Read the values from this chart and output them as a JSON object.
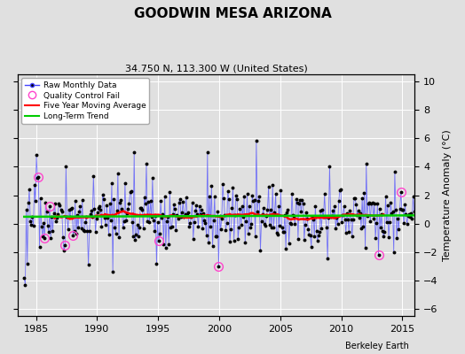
{
  "title": "GOODWIN MESA ARIZONA",
  "subtitle": "34.750 N, 113.300 W (United States)",
  "ylabel": "Temperature Anomaly (°C)",
  "credit": "Berkeley Earth",
  "xlim": [
    1983.5,
    2016.0
  ],
  "ylim": [
    -6.5,
    10.5
  ],
  "yticks": [
    -6,
    -4,
    -2,
    0,
    2,
    4,
    6,
    8,
    10
  ],
  "xticks": [
    1985,
    1990,
    1995,
    2000,
    2005,
    2010,
    2015
  ],
  "bg_color": "#e0e0e0",
  "grid_color": "#ffffff",
  "raw_line_color": "#4444ff",
  "raw_line_alpha": 0.7,
  "raw_dot_color": "#000000",
  "qc_fail_color": "#ff44cc",
  "moving_avg_color": "#ff0000",
  "trend_color": "#00cc00",
  "seed": 17
}
